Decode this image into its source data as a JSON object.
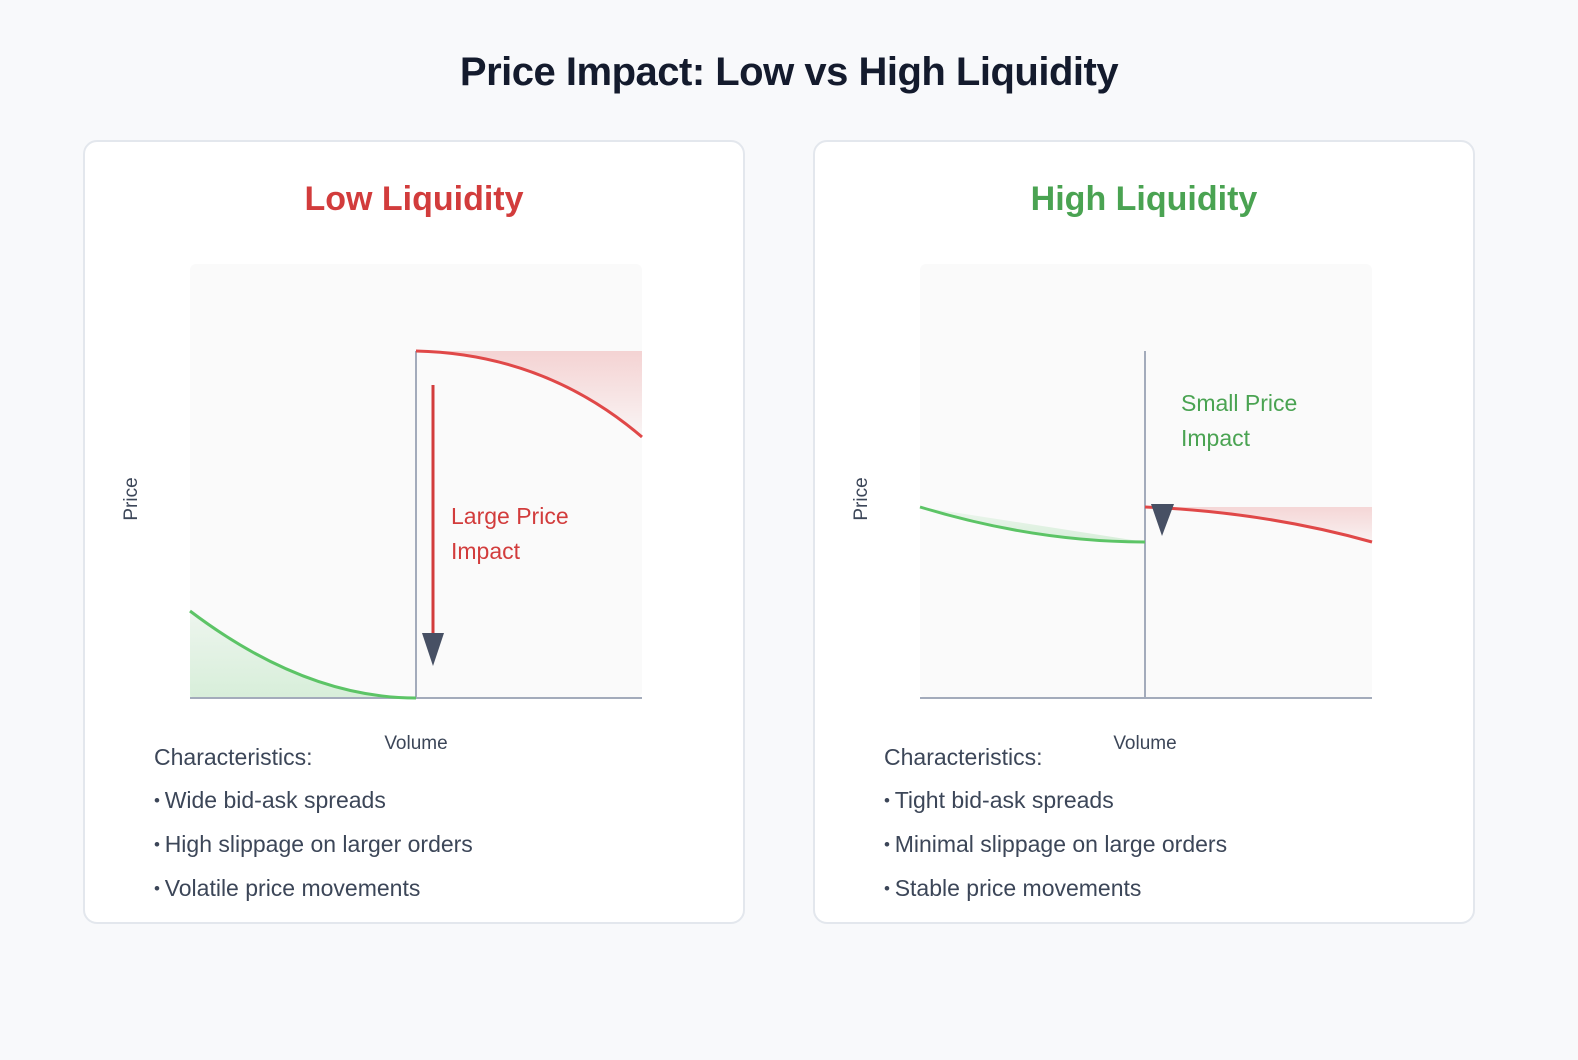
{
  "title": "Price Impact: Low vs High Liquidity",
  "colors": {
    "low": "#d23c3c",
    "high": "#4aa352",
    "green_line": "#5cc466",
    "red_line": "#e04848",
    "arrow": "#475064",
    "axis": "#a3abbb"
  },
  "panels": [
    {
      "heading": "Low Liquidity",
      "y_label": "Price",
      "x_label": "Volume",
      "annotation": [
        "Large Price",
        "Impact"
      ],
      "characteristics_label": "Characteristics:",
      "characteristics": [
        "Wide bid-ask spreads",
        "High slippage on larger orders",
        "Volatile price movements"
      ]
    },
    {
      "heading": "High Liquidity",
      "y_label": "Price",
      "x_label": "Volume",
      "annotation": [
        "Small Price",
        "Impact"
      ],
      "characteristics_label": "Characteristics:",
      "characteristics": [
        "Tight bid-ask spreads",
        "Minimal slippage on large orders",
        "Stable price movements"
      ]
    }
  ]
}
